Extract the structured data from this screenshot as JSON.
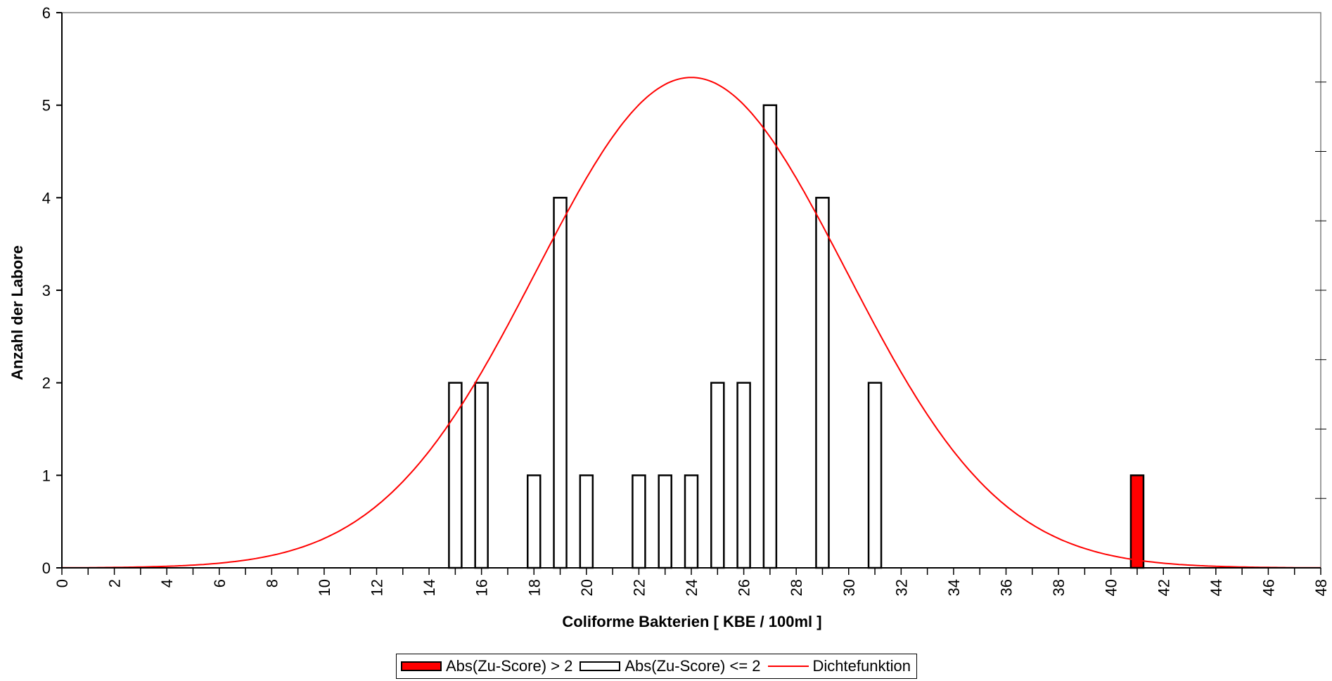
{
  "chart_data": {
    "type": "bar",
    "title": "",
    "xlabel": "Coliforme Bakterien [ KBE / 100ml ]",
    "ylabel": "Anzahl der Labore",
    "xlim": [
      0,
      48
    ],
    "ylim": [
      0,
      6
    ],
    "x_ticks": [
      "0",
      "2",
      "4",
      "6",
      "8",
      "10",
      "12",
      "14",
      "16",
      "18",
      "20",
      "22",
      "24",
      "26",
      "28",
      "30",
      "32",
      "34",
      "36",
      "38",
      "40",
      "42",
      "44",
      "46",
      "48"
    ],
    "y_ticks": [
      "0",
      "1",
      "2",
      "3",
      "4",
      "5",
      "6"
    ],
    "series": [
      {
        "name": "Abs(Zu-Score) > 2",
        "color": "#ff0000",
        "points": [
          {
            "x": 41,
            "y": 1
          }
        ]
      },
      {
        "name": "Abs(Zu-Score) <= 2",
        "color": "#ffffff",
        "points": [
          {
            "x": 15,
            "y": 2
          },
          {
            "x": 16,
            "y": 2
          },
          {
            "x": 18,
            "y": 1
          },
          {
            "x": 19,
            "y": 4
          },
          {
            "x": 20,
            "y": 1
          },
          {
            "x": 22,
            "y": 1
          },
          {
            "x": 23,
            "y": 1
          },
          {
            "x": 24,
            "y": 1
          },
          {
            "x": 25,
            "y": 2
          },
          {
            "x": 26,
            "y": 2
          },
          {
            "x": 27,
            "y": 5
          },
          {
            "x": 29,
            "y": 4
          },
          {
            "x": 31,
            "y": 2
          }
        ]
      }
    ],
    "density": {
      "name": "Dichtefunktion",
      "color": "#ff0000",
      "type": "line",
      "mean": 24,
      "sd": 5.9,
      "peak": 5.3
    },
    "grid": false,
    "legend_position": "bottom"
  }
}
